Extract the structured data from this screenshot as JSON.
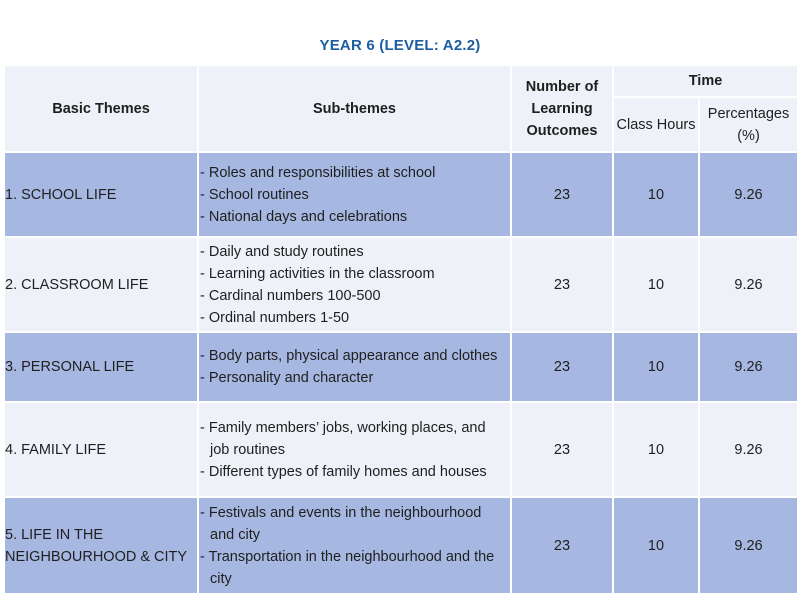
{
  "title": "YEAR 6 (LEVEL: A2.2)",
  "headers": {
    "basic_themes": "Basic Themes",
    "sub_themes": "Sub-themes",
    "learning_outcomes": "Number of Learning Outcomes",
    "time": "Time",
    "class_hours": "Class Hours",
    "percentages": "Percentages (%)"
  },
  "rows": [
    {
      "theme": "1. SCHOOL LIFE",
      "subthemes": [
        "- Roles and responsibilities at school",
        "- School routines",
        "- National days and celebrations"
      ],
      "outcomes": "23",
      "hours": "10",
      "percent": "9.26"
    },
    {
      "theme": "2. CLASSROOM LIFE",
      "subthemes": [
        "- Daily and study routines",
        "- Learning activities in the classroom",
        "- Cardinal numbers 100-500",
        "- Ordinal numbers 1-50"
      ],
      "outcomes": "23",
      "hours": "10",
      "percent": "9.26"
    },
    {
      "theme": "3. PERSONAL LIFE",
      "subthemes": [
        "- Body parts, physical appearance and clothes",
        "- Personality and character"
      ],
      "outcomes": "23",
      "hours": "10",
      "percent": "9.26"
    },
    {
      "theme": "4. FAMILY LIFE",
      "subthemes": [
        "- Family members’ jobs, working places, and job routines",
        "- Different types of family homes and houses"
      ],
      "outcomes": "23",
      "hours": "10",
      "percent": "9.26"
    },
    {
      "theme": "5. LIFE IN THE NEIGHBOURHOOD & CITY",
      "subthemes": [
        "- Festivals and events in the neighbourhood and city",
        "- Transportation in the neighbourhood and the city"
      ],
      "outcomes": "23",
      "hours": "10",
      "percent": "9.26"
    }
  ]
}
